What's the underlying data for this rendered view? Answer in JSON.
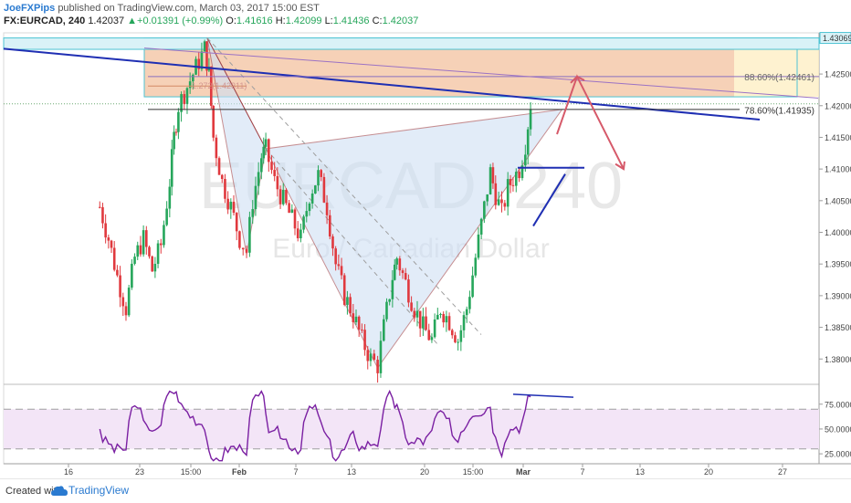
{
  "header": {
    "author": "JoeFXPips",
    "published_text": "published on TradingView.com, March 03, 2017 15:00 EST",
    "symbol": "FX:EURCAD, 240",
    "last": "1.42037",
    "change_arrow": "▲",
    "change": "+0.01391 (+0.99%)",
    "open_label": "O:",
    "open": "1.41616",
    "high_label": "H:",
    "high": "1.42099",
    "low_label": "L:",
    "low": "1.41436",
    "close_label": "C:",
    "close": "1.42037"
  },
  "watermark": {
    "symbol": "EURCAD, 240",
    "name": "Euro / Canadian Dollar"
  },
  "footer": {
    "created_with": "Created with",
    "brand": "TradingView"
  },
  "colors": {
    "up": "#26a65b",
    "down": "#e0393e",
    "accent": "#2a7ad0",
    "rsi": "#7a1fa2",
    "trendline": "#1f2fb3"
  },
  "chart_data": [
    {
      "type": "candlestick",
      "timeframe": "240",
      "x_ticks": [
        "16",
        "23",
        "15:00",
        "Feb",
        "7",
        "13",
        "20",
        "15:00",
        "Mar",
        "7",
        "13",
        "20",
        "27"
      ],
      "y_ticks": [
        "1.38000",
        "1.38500",
        "1.39000",
        "1.39500",
        "1.40000",
        "1.40500",
        "1.41000",
        "1.41500",
        "1.42000",
        "1.42500"
      ],
      "ylim": [
        1.376,
        1.4315
      ],
      "price_label": "1.43069",
      "last_price": 1.42037,
      "annotations": [
        {
          "text": "88.60%(1.42461)",
          "value": 1.42461
        },
        {
          "text": "78.60%(1.41935)",
          "value": 1.41935
        },
        {
          "text": "1.272(1.42311)",
          "value": 1.42311
        }
      ],
      "pattern_points": [
        {
          "x": 23.3,
          "y": 1.4307
        },
        {
          "x": 27.8,
          "y": 1.3965
        },
        {
          "x": 30.0,
          "y": 1.4132
        },
        {
          "x": 42.8,
          "y": 1.3786
        },
        {
          "x": 63.9,
          "y": 1.4194
        }
      ],
      "ohlc_path": [
        [
          11.0,
          1.404
        ],
        [
          12.0,
          1.399
        ],
        [
          13.0,
          1.393
        ],
        [
          14.0,
          1.388
        ],
        [
          15.0,
          1.396
        ],
        [
          16.0,
          1.399
        ],
        [
          17.0,
          1.394
        ],
        [
          18.0,
          1.398
        ],
        [
          19.0,
          1.408
        ],
        [
          19.5,
          1.415
        ],
        [
          20.0,
          1.42
        ],
        [
          21.0,
          1.423
        ],
        [
          22.0,
          1.426
        ],
        [
          23.0,
          1.429
        ],
        [
          23.5,
          1.425
        ],
        [
          24.0,
          1.415
        ],
        [
          25.0,
          1.408
        ],
        [
          26.0,
          1.404
        ],
        [
          27.0,
          1.399
        ],
        [
          27.8,
          1.397
        ],
        [
          28.5,
          1.405
        ],
        [
          29.5,
          1.412
        ],
        [
          30.0,
          1.413
        ],
        [
          31.0,
          1.408
        ],
        [
          32.0,
          1.405
        ],
        [
          33.0,
          1.402
        ],
        [
          34.0,
          1.399
        ],
        [
          35.0,
          1.406
        ],
        [
          36.0,
          1.409
        ],
        [
          37.0,
          1.404
        ],
        [
          38.0,
          1.395
        ],
        [
          39.0,
          1.39
        ],
        [
          40.0,
          1.387
        ],
        [
          41.0,
          1.383
        ],
        [
          42.0,
          1.38
        ],
        [
          42.8,
          1.379
        ],
        [
          43.5,
          1.385
        ],
        [
          44.5,
          1.393
        ],
        [
          45.0,
          1.396
        ],
        [
          46.0,
          1.392
        ],
        [
          47.0,
          1.388
        ],
        [
          48.0,
          1.385
        ],
        [
          49.0,
          1.383
        ],
        [
          50.0,
          1.388
        ],
        [
          51.0,
          1.386
        ],
        [
          52.0,
          1.383
        ],
        [
          53.0,
          1.388
        ],
        [
          54.0,
          1.396
        ],
        [
          55.0,
          1.404
        ],
        [
          55.7,
          1.4095
        ],
        [
          56.3,
          1.406
        ],
        [
          57.0,
          1.403
        ],
        [
          57.7,
          1.407
        ],
        [
          58.3,
          1.4085
        ],
        [
          59.0,
          1.41
        ],
        [
          59.7,
          1.414
        ],
        [
          60.3,
          1.4203
        ]
      ]
    },
    {
      "type": "line",
      "name": "RSI",
      "y_ticks": [
        "25.0000",
        "50.0000",
        "75.0000"
      ],
      "ylim": [
        15,
        95
      ],
      "levels": [
        30,
        70
      ]
    }
  ]
}
